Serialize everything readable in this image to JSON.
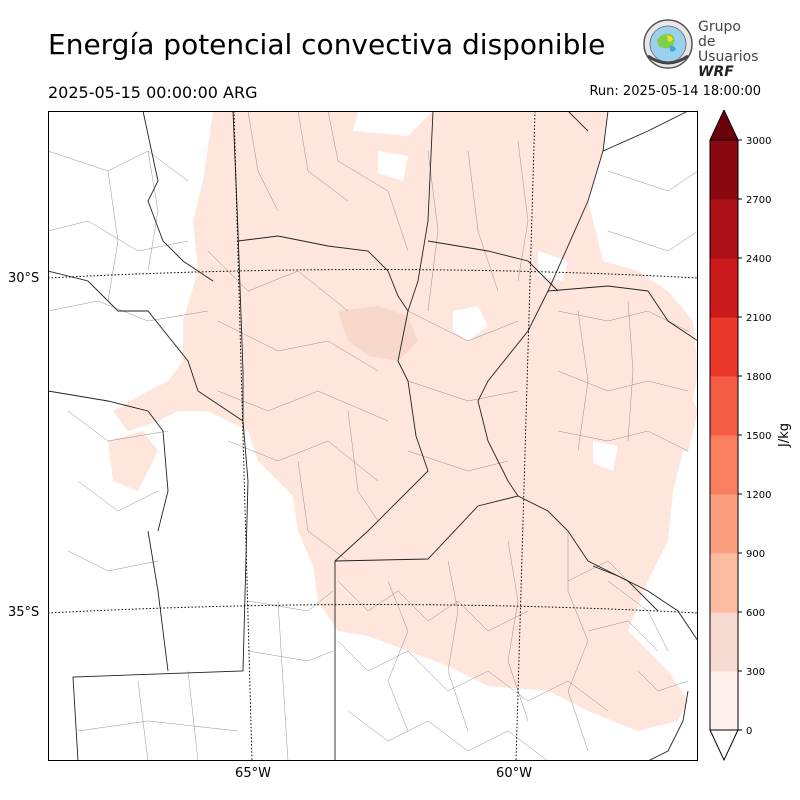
{
  "header": {
    "title": "Energía potencial convectiva disponible",
    "valid_time": "2025-05-15 00:00:00 ARG",
    "run_time": "Run: 2025-05-14 18:00:00"
  },
  "logo": {
    "line1": "Grupo de",
    "line2": "Usuarios",
    "line3": "WRF"
  },
  "map": {
    "lat_labels": [
      "30°S",
      "35°S"
    ],
    "lon_labels": [
      "65°W",
      "60°W"
    ],
    "field_color": "#fee6dc",
    "field_color_dark": "#f8d8cb"
  },
  "colorbar": {
    "unit": "J/kg",
    "ticks": [
      "0",
      "300",
      "600",
      "900",
      "1200",
      "1500",
      "1800",
      "2100",
      "2400",
      "2700",
      "3000"
    ],
    "colors": [
      "#fff0eb",
      "#f6d9d0",
      "#fdbba0",
      "#fc9f81",
      "#fb7e5e",
      "#f65c44",
      "#eb372a",
      "#cc1a1c",
      "#ad1117",
      "#8b0811",
      "#6b010d"
    ]
  }
}
